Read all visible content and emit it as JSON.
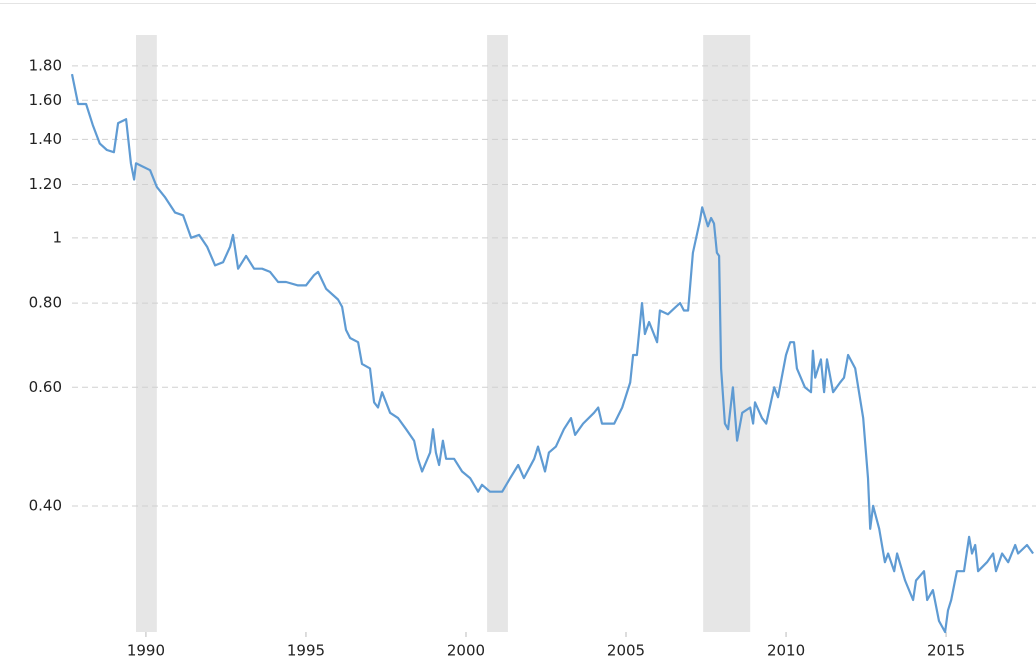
{
  "chart_data": {
    "type": "line",
    "log_y": true,
    "grid": true,
    "xlim": [
      1987.69,
      2017.81
    ],
    "ylim": [
      0.26,
      2.0
    ],
    "xticks": [
      1990,
      1995,
      2000,
      2005,
      2010,
      2015
    ],
    "yticks": [
      {
        "value": 0.4,
        "label": "0.40"
      },
      {
        "value": 0.6,
        "label": "0.60"
      },
      {
        "value": 0.8,
        "label": "0.80"
      },
      1,
      {
        "value": 1.2,
        "label": "1.20"
      },
      {
        "value": 1.4,
        "label": "1.40"
      },
      {
        "value": 1.6,
        "label": "1.60"
      },
      {
        "value": 1.8,
        "label": "1.80"
      }
    ],
    "shaded_periods": [
      [
        1989.69,
        1990.34
      ],
      [
        2000.66,
        2001.31
      ],
      [
        2007.41,
        2008.88
      ]
    ],
    "shade_color": "#e6e6e6",
    "series": [
      {
        "color": "#5f9bd3",
        "x": [
          1987.69,
          1987.88,
          1988.13,
          1988.34,
          1988.56,
          1988.78,
          1989.0,
          1989.13,
          1989.38,
          1989.53,
          1989.63,
          1989.69,
          1989.84,
          1990.13,
          1990.34,
          1990.59,
          1990.91,
          1991.16,
          1991.41,
          1991.66,
          1991.91,
          1992.16,
          1992.41,
          1992.63,
          1992.72,
          1992.88,
          1993.13,
          1993.38,
          1993.63,
          1993.88,
          1994.13,
          1994.38,
          1994.75,
          1995.0,
          1995.25,
          1995.38,
          1995.63,
          1996.0,
          1996.13,
          1996.25,
          1996.38,
          1996.63,
          1996.75,
          1997.0,
          1997.13,
          1997.25,
          1997.38,
          1997.63,
          1997.88,
          1998.13,
          1998.38,
          1998.5,
          1998.63,
          1998.88,
          1998.97,
          1999.06,
          1999.16,
          1999.28,
          1999.38,
          1999.63,
          1999.88,
          2000.13,
          2000.38,
          2000.5,
          2000.75,
          2001.0,
          2001.13,
          2001.38,
          2001.63,
          2001.81,
          2002.13,
          2002.25,
          2002.47,
          2002.59,
          2002.81,
          2003.06,
          2003.28,
          2003.41,
          2003.66,
          2004.0,
          2004.13,
          2004.25,
          2004.63,
          2004.88,
          2005.13,
          2005.22,
          2005.34,
          2005.5,
          2005.59,
          2005.72,
          2005.97,
          2006.06,
          2006.31,
          2006.56,
          2006.69,
          2006.81,
          2006.94,
          2007.09,
          2007.31,
          2007.38,
          2007.56,
          2007.66,
          2007.75,
          2007.84,
          2007.91,
          2007.97,
          2008.09,
          2008.19,
          2008.34,
          2008.47,
          2008.63,
          2008.88,
          2008.97,
          2009.03,
          2009.25,
          2009.38,
          2009.63,
          2009.75,
          2010.0,
          2010.13,
          2010.25,
          2010.34,
          2010.59,
          2010.78,
          2010.84,
          2010.91,
          2011.09,
          2011.19,
          2011.28,
          2011.47,
          2011.69,
          2011.81,
          2011.94,
          2012.16,
          2012.28,
          2012.41,
          2012.56,
          2012.63,
          2012.72,
          2012.91,
          2013.09,
          2013.19,
          2013.38,
          2013.47,
          2013.72,
          2013.97,
          2014.06,
          2014.31,
          2014.41,
          2014.59,
          2014.78,
          2014.97,
          2015.06,
          2015.16,
          2015.34,
          2015.56,
          2015.72,
          2015.81,
          2015.91,
          2016.0,
          2016.28,
          2016.47,
          2016.56,
          2016.75,
          2016.94,
          2017.16,
          2017.25,
          2017.53,
          2017.72
        ],
        "values": [
          1.75,
          1.58,
          1.58,
          1.47,
          1.38,
          1.35,
          1.34,
          1.48,
          1.5,
          1.29,
          1.22,
          1.29,
          1.28,
          1.26,
          1.19,
          1.15,
          1.09,
          1.08,
          1.0,
          1.01,
          0.97,
          0.91,
          0.92,
          0.97,
          1.01,
          0.9,
          0.94,
          0.9,
          0.9,
          0.89,
          0.86,
          0.86,
          0.85,
          0.85,
          0.88,
          0.89,
          0.84,
          0.81,
          0.79,
          0.73,
          0.71,
          0.7,
          0.65,
          0.64,
          0.57,
          0.56,
          0.59,
          0.55,
          0.54,
          0.52,
          0.5,
          0.47,
          0.45,
          0.48,
          0.52,
          0.48,
          0.46,
          0.5,
          0.47,
          0.47,
          0.45,
          0.44,
          0.42,
          0.43,
          0.42,
          0.42,
          0.42,
          0.44,
          0.46,
          0.44,
          0.47,
          0.49,
          0.45,
          0.48,
          0.49,
          0.52,
          0.54,
          0.51,
          0.53,
          0.55,
          0.56,
          0.53,
          0.53,
          0.56,
          0.61,
          0.67,
          0.67,
          0.8,
          0.72,
          0.75,
          0.7,
          0.78,
          0.77,
          0.79,
          0.8,
          0.78,
          0.78,
          0.95,
          1.06,
          1.11,
          1.04,
          1.07,
          1.05,
          0.95,
          0.94,
          0.64,
          0.53,
          0.52,
          0.6,
          0.5,
          0.55,
          0.56,
          0.53,
          0.57,
          0.54,
          0.53,
          0.6,
          0.58,
          0.67,
          0.7,
          0.7,
          0.64,
          0.6,
          0.59,
          0.68,
          0.62,
          0.66,
          0.59,
          0.66,
          0.59,
          0.61,
          0.62,
          0.67,
          0.64,
          0.59,
          0.54,
          0.44,
          0.37,
          0.4,
          0.37,
          0.33,
          0.34,
          0.32,
          0.34,
          0.31,
          0.29,
          0.31,
          0.32,
          0.29,
          0.3,
          0.27,
          0.26,
          0.28,
          0.29,
          0.32,
          0.32,
          0.36,
          0.34,
          0.35,
          0.32,
          0.33,
          0.34,
          0.32,
          0.34,
          0.33,
          0.35,
          0.34,
          0.35,
          0.34
        ]
      }
    ]
  }
}
